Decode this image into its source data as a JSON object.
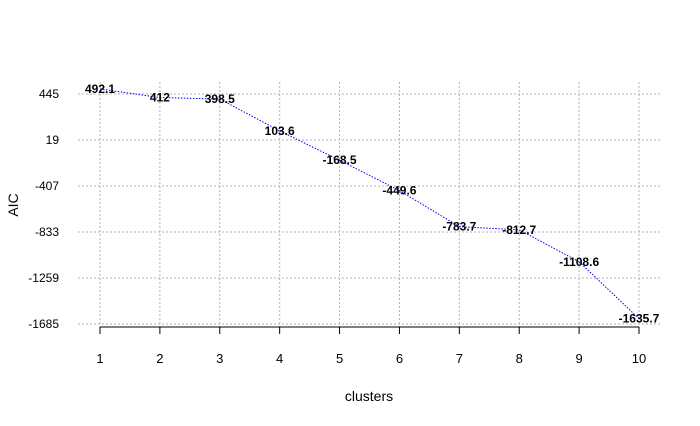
{
  "chart_data": {
    "type": "line",
    "xlabel": "clusters",
    "ylabel": "AIC",
    "x": [
      1,
      2,
      3,
      4,
      5,
      6,
      7,
      8,
      9,
      10
    ],
    "series": [
      {
        "values": [
          492.1,
          412,
          398.5,
          103.6,
          -168.5,
          -449.6,
          -783.7,
          -812.7,
          -1108.6,
          -1635.7
        ],
        "labels": [
          "492.1",
          "412",
          "398.5",
          "103.6",
          "-168.5",
          "-449.6",
          "-783.7",
          "-812.7",
          "-1108.6",
          "-1635.7"
        ],
        "color": "#0000ff",
        "line_style": "dotted"
      }
    ],
    "xticks": [
      "1",
      "2",
      "3",
      "4",
      "5",
      "6",
      "7",
      "8",
      "9",
      "10"
    ],
    "yticks": [
      445,
      19,
      -407,
      -833,
      -1259,
      -1685
    ],
    "ytick_labels": [
      "445",
      "19",
      "-407",
      "-833",
      "-1259",
      "-1685"
    ],
    "xlim": [
      1,
      10
    ],
    "ylim": [
      -1685,
      492.1
    ],
    "grid": true,
    "grid_color": "#b3b3b3",
    "legend": "none"
  }
}
